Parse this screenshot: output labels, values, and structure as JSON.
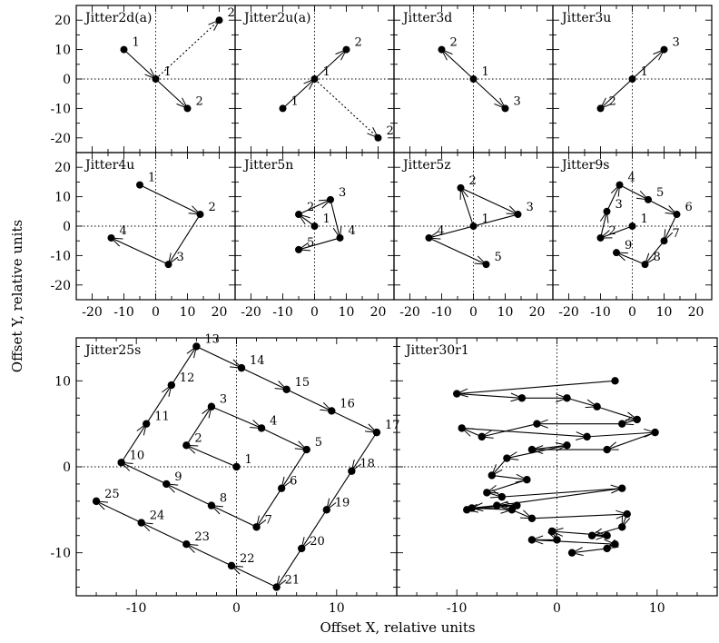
{
  "figure": {
    "xlabel": "Offset X, relative units",
    "ylabel": "Offset Y, relative units"
  },
  "chart_data": [
    {
      "type": "scatter",
      "title": "Jitter2d(a)",
      "xlim": [
        -25,
        25
      ],
      "ylim": [
        -25,
        25
      ],
      "xticks": [],
      "yticks": [
        -20,
        -10,
        0,
        10,
        20
      ],
      "grid": false,
      "style": "solid-then-dotted",
      "points": [
        {
          "x": -10,
          "y": 10,
          "label": "1"
        },
        {
          "x": 0,
          "y": 0,
          "label": "1"
        },
        {
          "x": 10,
          "y": -10,
          "label": "2"
        },
        {
          "x": 20,
          "y": 20,
          "label": "2"
        }
      ],
      "segments": [
        {
          "from": 0,
          "to": 1,
          "style": "solid"
        },
        {
          "from": 1,
          "to": 2,
          "style": "solid"
        },
        {
          "from": 1,
          "to": 3,
          "style": "dotted"
        }
      ]
    },
    {
      "type": "scatter",
      "title": "Jitter2u(a)",
      "xlim": [
        -25,
        25
      ],
      "ylim": [
        -25,
        25
      ],
      "xticks": [],
      "yticks": [],
      "grid": false,
      "points": [
        {
          "x": -10,
          "y": -10,
          "label": "1"
        },
        {
          "x": 0,
          "y": 0,
          "label": "1"
        },
        {
          "x": 10,
          "y": 10,
          "label": "2"
        },
        {
          "x": 20,
          "y": -20,
          "label": "2"
        }
      ],
      "segments": [
        {
          "from": 0,
          "to": 1,
          "style": "solid"
        },
        {
          "from": 1,
          "to": 2,
          "style": "solid"
        },
        {
          "from": 1,
          "to": 3,
          "style": "dotted"
        }
      ]
    },
    {
      "type": "scatter",
      "title": "Jitter3d",
      "xlim": [
        -25,
        25
      ],
      "ylim": [
        -25,
        25
      ],
      "xticks": [],
      "yticks": [],
      "grid": false,
      "points": [
        {
          "x": -10,
          "y": 10,
          "label": "2"
        },
        {
          "x": 0,
          "y": 0,
          "label": "1"
        },
        {
          "x": 10,
          "y": -10,
          "label": "3"
        }
      ],
      "segments": [
        {
          "from": 1,
          "to": 0,
          "style": "solid"
        },
        {
          "from": 1,
          "to": 2,
          "style": "solid"
        }
      ]
    },
    {
      "type": "scatter",
      "title": "Jitter3u",
      "xlim": [
        -25,
        25
      ],
      "ylim": [
        -25,
        25
      ],
      "xticks": [],
      "yticks": [],
      "grid": false,
      "points": [
        {
          "x": 10,
          "y": 10,
          "label": "3"
        },
        {
          "x": 0,
          "y": 0,
          "label": "1"
        },
        {
          "x": -10,
          "y": -10,
          "label": "2"
        }
      ],
      "segments": [
        {
          "from": 1,
          "to": 2,
          "style": "solid"
        },
        {
          "from": 1,
          "to": 0,
          "style": "solid"
        }
      ]
    },
    {
      "type": "scatter",
      "title": "Jitter4u",
      "xlim": [
        -25,
        25
      ],
      "ylim": [
        -25,
        25
      ],
      "xticks": [
        -20,
        -10,
        0,
        10,
        20
      ],
      "yticks": [
        -20,
        -10,
        0,
        10,
        20
      ],
      "grid": false,
      "points": [
        {
          "x": -5,
          "y": 14,
          "label": "1"
        },
        {
          "x": 14,
          "y": 4,
          "label": "2"
        },
        {
          "x": 4,
          "y": -13,
          "label": "3"
        },
        {
          "x": -14,
          "y": -4,
          "label": "4"
        }
      ],
      "segments": [
        {
          "from": 0,
          "to": 1,
          "style": "solid"
        },
        {
          "from": 1,
          "to": 2,
          "style": "solid"
        },
        {
          "from": 2,
          "to": 3,
          "style": "solid"
        }
      ]
    },
    {
      "type": "scatter",
      "title": "Jitter5n",
      "xlim": [
        -25,
        25
      ],
      "ylim": [
        -25,
        25
      ],
      "xticks": [
        -20,
        -10,
        0,
        10,
        20
      ],
      "yticks": [],
      "grid": false,
      "points": [
        {
          "x": 0,
          "y": 0,
          "label": "1"
        },
        {
          "x": -5,
          "y": 4,
          "label": "2"
        },
        {
          "x": 5,
          "y": 9,
          "label": "3"
        },
        {
          "x": 8,
          "y": -4,
          "label": "4"
        },
        {
          "x": -5,
          "y": -8,
          "label": "5"
        }
      ],
      "segments": [
        {
          "from": 0,
          "to": 1,
          "style": "solid"
        },
        {
          "from": 1,
          "to": 2,
          "style": "solid"
        },
        {
          "from": 2,
          "to": 3,
          "style": "solid"
        },
        {
          "from": 3,
          "to": 4,
          "style": "solid"
        }
      ]
    },
    {
      "type": "scatter",
      "title": "Jitter5z",
      "xlim": [
        -25,
        25
      ],
      "ylim": [
        -25,
        25
      ],
      "xticks": [
        -20,
        -10,
        0,
        10,
        20
      ],
      "yticks": [],
      "grid": false,
      "points": [
        {
          "x": 0,
          "y": 0,
          "label": "1"
        },
        {
          "x": -4,
          "y": 13,
          "label": "2"
        },
        {
          "x": 14,
          "y": 4,
          "label": "3"
        },
        {
          "x": -14,
          "y": -4,
          "label": "4"
        },
        {
          "x": 4,
          "y": -13,
          "label": "5"
        }
      ],
      "segments": [
        {
          "from": 0,
          "to": 1,
          "style": "solid"
        },
        {
          "from": 1,
          "to": 2,
          "style": "solid"
        },
        {
          "from": 2,
          "to": 3,
          "style": "solid"
        },
        {
          "from": 3,
          "to": 4,
          "style": "solid"
        }
      ]
    },
    {
      "type": "scatter",
      "title": "Jitter9s",
      "xlim": [
        -25,
        25
      ],
      "ylim": [
        -25,
        25
      ],
      "xticks": [
        -20,
        -10,
        0,
        10,
        20
      ],
      "yticks": [],
      "grid": false,
      "points": [
        {
          "x": 0,
          "y": 0,
          "label": "1"
        },
        {
          "x": -10,
          "y": -4,
          "label": "2"
        },
        {
          "x": -8,
          "y": 5,
          "label": "3"
        },
        {
          "x": -4,
          "y": 14,
          "label": "4"
        },
        {
          "x": 5,
          "y": 9,
          "label": "5"
        },
        {
          "x": 14,
          "y": 4,
          "label": "6"
        },
        {
          "x": 10,
          "y": -5,
          "label": "7"
        },
        {
          "x": 4,
          "y": -13,
          "label": "8"
        },
        {
          "x": -5,
          "y": -9,
          "label": "9"
        }
      ],
      "segments": [
        {
          "from": 0,
          "to": 1,
          "style": "solid"
        },
        {
          "from": 1,
          "to": 2,
          "style": "solid"
        },
        {
          "from": 2,
          "to": 3,
          "style": "solid"
        },
        {
          "from": 3,
          "to": 4,
          "style": "solid"
        },
        {
          "from": 4,
          "to": 5,
          "style": "solid"
        },
        {
          "from": 5,
          "to": 6,
          "style": "solid"
        },
        {
          "from": 6,
          "to": 7,
          "style": "solid"
        },
        {
          "from": 7,
          "to": 8,
          "style": "solid"
        }
      ]
    },
    {
      "type": "scatter",
      "title": "Jitter25s",
      "xlim": [
        -16,
        16
      ],
      "ylim": [
        -15,
        15
      ],
      "xticks": [
        -10,
        0,
        10
      ],
      "yticks": [
        -10,
        0,
        10
      ],
      "grid": false,
      "points": [
        {
          "x": 0,
          "y": 0,
          "label": "1"
        },
        {
          "x": -5,
          "y": 2.5,
          "label": "2"
        },
        {
          "x": -2.5,
          "y": 7,
          "label": "3"
        },
        {
          "x": 2.5,
          "y": 4.5,
          "label": "4"
        },
        {
          "x": 7,
          "y": 2,
          "label": "5"
        },
        {
          "x": 4.5,
          "y": -2.5,
          "label": "6"
        },
        {
          "x": 2,
          "y": -7,
          "label": "7"
        },
        {
          "x": -2.5,
          "y": -4.5,
          "label": "8"
        },
        {
          "x": -7,
          "y": -2,
          "label": "9"
        },
        {
          "x": -11.5,
          "y": 0.5,
          "label": "10"
        },
        {
          "x": -9,
          "y": 5,
          "label": "11"
        },
        {
          "x": -6.5,
          "y": 9.5,
          "label": "12"
        },
        {
          "x": -4,
          "y": 14,
          "label": "13"
        },
        {
          "x": 0.5,
          "y": 11.5,
          "label": "14"
        },
        {
          "x": 5,
          "y": 9,
          "label": "15"
        },
        {
          "x": 9.5,
          "y": 6.5,
          "label": "16"
        },
        {
          "x": 14,
          "y": 4,
          "label": "17"
        },
        {
          "x": 11.5,
          "y": -0.5,
          "label": "18"
        },
        {
          "x": 9,
          "y": -5,
          "label": "19"
        },
        {
          "x": 6.5,
          "y": -9.5,
          "label": "20"
        },
        {
          "x": 4,
          "y": -14,
          "label": "21"
        },
        {
          "x": -0.5,
          "y": -11.5,
          "label": "22"
        },
        {
          "x": -5,
          "y": -9,
          "label": "23"
        },
        {
          "x": -9.5,
          "y": -6.5,
          "label": "24"
        },
        {
          "x": -14,
          "y": -4,
          "label": "25"
        }
      ],
      "path": "sequential"
    },
    {
      "type": "scatter",
      "title": "Jitter30r1",
      "xlim": [
        -16,
        16
      ],
      "ylim": [
        -15,
        15
      ],
      "xticks": [
        -10,
        0,
        10
      ],
      "yticks": [],
      "grid": false,
      "points": [
        {
          "x": 5.8,
          "y": 10
        },
        {
          "x": -10,
          "y": 8.5
        },
        {
          "x": -3.5,
          "y": 8
        },
        {
          "x": 1,
          "y": 8
        },
        {
          "x": 4,
          "y": 7
        },
        {
          "x": 8,
          "y": 5.5
        },
        {
          "x": 6.5,
          "y": 5
        },
        {
          "x": -2,
          "y": 5
        },
        {
          "x": -7.5,
          "y": 3.5
        },
        {
          "x": -9.5,
          "y": 4.5
        },
        {
          "x": 3,
          "y": 3.5
        },
        {
          "x": 9.8,
          "y": 4
        },
        {
          "x": 5,
          "y": 2
        },
        {
          "x": -2.5,
          "y": 2
        },
        {
          "x": 1,
          "y": 2.5
        },
        {
          "x": -5,
          "y": 1
        },
        {
          "x": -6.5,
          "y": -1
        },
        {
          "x": -3,
          "y": -1.5
        },
        {
          "x": -7,
          "y": -3
        },
        {
          "x": -5.5,
          "y": -3.5
        },
        {
          "x": 6.5,
          "y": -2.5
        },
        {
          "x": -9,
          "y": -5
        },
        {
          "x": -4,
          "y": -4.5
        },
        {
          "x": -6,
          "y": -4.5
        },
        {
          "x": -8.5,
          "y": -4.8
        },
        {
          "x": -4.5,
          "y": -5
        },
        {
          "x": -2.5,
          "y": -6
        },
        {
          "x": 7,
          "y": -5.5
        },
        {
          "x": 6.5,
          "y": -7
        },
        {
          "x": 3.5,
          "y": -8
        },
        {
          "x": 5,
          "y": -8
        },
        {
          "x": -0.5,
          "y": -7.5
        },
        {
          "x": 0,
          "y": -8.5
        },
        {
          "x": -2.5,
          "y": -8.5
        },
        {
          "x": 5.8,
          "y": -9
        },
        {
          "x": 5,
          "y": -9.5
        },
        {
          "x": 1.5,
          "y": -10
        }
      ],
      "path": "sequential"
    }
  ]
}
